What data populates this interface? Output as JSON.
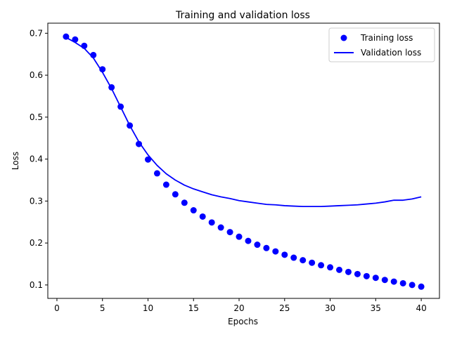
{
  "chart_data": {
    "type": "line",
    "title": "Training and validation loss",
    "xlabel": "Epochs",
    "ylabel": "Loss",
    "xlim": [
      -1,
      42
    ],
    "ylim": [
      0.068,
      0.724
    ],
    "xticks": [
      0,
      5,
      10,
      15,
      20,
      25,
      30,
      35,
      40
    ],
    "yticks": [
      0.1,
      0.2,
      0.3,
      0.4,
      0.5,
      0.6,
      0.7
    ],
    "xtick_labels": [
      "0",
      "5",
      "10",
      "15",
      "20",
      "25",
      "30",
      "35",
      "40"
    ],
    "ytick_labels": [
      "0.1",
      "0.2",
      "0.3",
      "0.4",
      "0.5",
      "0.6",
      "0.7"
    ],
    "x": [
      1,
      2,
      3,
      4,
      5,
      6,
      7,
      8,
      9,
      10,
      11,
      12,
      13,
      14,
      15,
      16,
      17,
      18,
      19,
      20,
      21,
      22,
      23,
      24,
      25,
      26,
      27,
      28,
      29,
      30,
      31,
      32,
      33,
      34,
      35,
      36,
      37,
      38,
      39,
      40
    ],
    "series": [
      {
        "name": "Training loss",
        "style": "markers",
        "color": "#0000ff",
        "values": [
          0.692,
          0.685,
          0.67,
          0.648,
          0.614,
          0.571,
          0.525,
          0.48,
          0.436,
          0.399,
          0.366,
          0.339,
          0.316,
          0.296,
          0.278,
          0.263,
          0.249,
          0.237,
          0.226,
          0.215,
          0.205,
          0.196,
          0.188,
          0.18,
          0.172,
          0.165,
          0.159,
          0.153,
          0.147,
          0.142,
          0.136,
          0.131,
          0.126,
          0.121,
          0.117,
          0.112,
          0.108,
          0.104,
          0.1,
          0.096
        ]
      },
      {
        "name": "Validation loss",
        "style": "line",
        "color": "#0000ff",
        "values": [
          0.69,
          0.678,
          0.664,
          0.641,
          0.607,
          0.568,
          0.524,
          0.48,
          0.441,
          0.41,
          0.385,
          0.365,
          0.35,
          0.338,
          0.329,
          0.322,
          0.315,
          0.31,
          0.306,
          0.301,
          0.298,
          0.295,
          0.292,
          0.291,
          0.289,
          0.288,
          0.287,
          0.287,
          0.287,
          0.288,
          0.289,
          0.29,
          0.291,
          0.293,
          0.295,
          0.298,
          0.302,
          0.302,
          0.305,
          0.31
        ]
      }
    ],
    "legend": {
      "location": "upper right",
      "entries": [
        "Training loss",
        "Validation loss"
      ]
    },
    "grid": false
  }
}
